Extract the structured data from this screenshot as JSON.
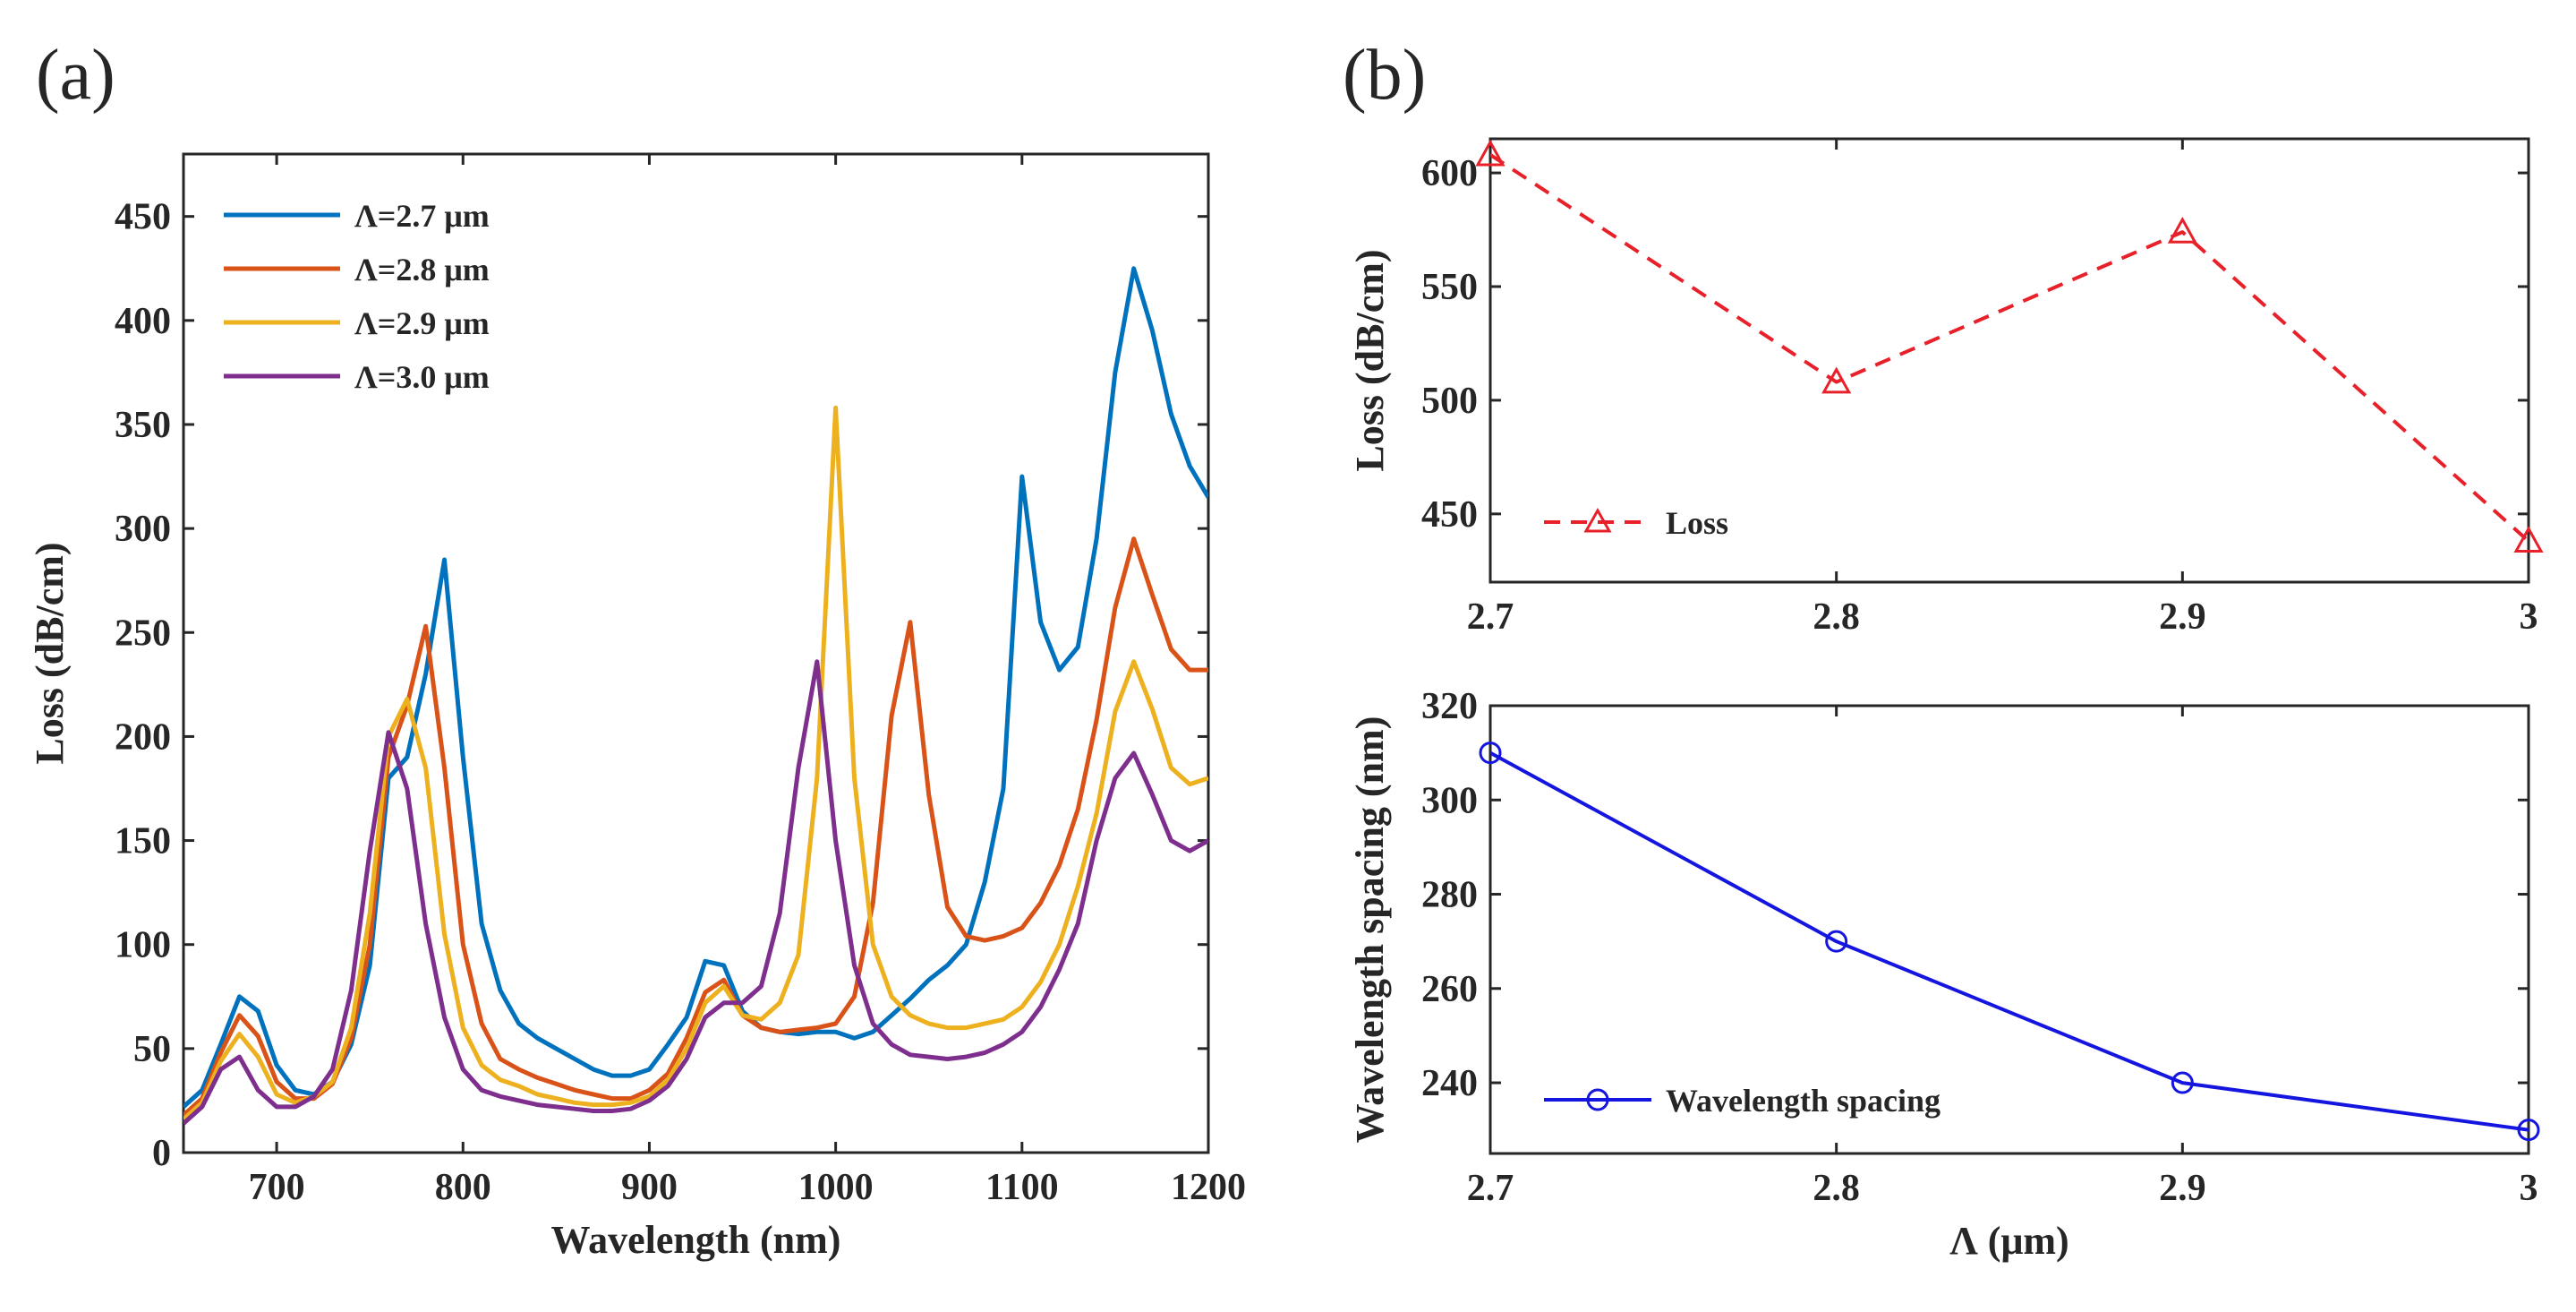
{
  "panel_labels": [
    "(a)",
    "(b)"
  ],
  "chart_data": [
    {
      "panel": "(a)",
      "type": "line",
      "xlabel": "Wavelength (nm)",
      "ylabel": "Loss (dB/cm)",
      "xlim": [
        650,
        1200
      ],
      "ylim": [
        0,
        480
      ],
      "xticks": [
        700,
        800,
        900,
        1000,
        1100,
        1200
      ],
      "yticks": [
        0,
        50,
        100,
        150,
        200,
        250,
        300,
        350,
        400,
        450
      ],
      "legend_position": "top-left",
      "x": [
        650,
        660,
        670,
        680,
        690,
        700,
        710,
        720,
        730,
        740,
        750,
        760,
        770,
        780,
        790,
        800,
        810,
        820,
        830,
        840,
        850,
        860,
        870,
        880,
        890,
        900,
        910,
        920,
        930,
        940,
        950,
        960,
        970,
        980,
        990,
        1000,
        1010,
        1020,
        1030,
        1040,
        1050,
        1060,
        1070,
        1080,
        1090,
        1100,
        1110,
        1120,
        1130,
        1140,
        1150,
        1160,
        1170,
        1180,
        1190,
        1200
      ],
      "series": [
        {
          "name": "Λ=2.7 μm",
          "color": "#0072BD",
          "values": [
            22,
            30,
            52,
            75,
            68,
            42,
            30,
            28,
            34,
            52,
            90,
            180,
            190,
            230,
            285,
            190,
            110,
            78,
            62,
            55,
            50,
            45,
            40,
            37,
            37,
            40,
            52,
            65,
            92,
            90,
            68,
            60,
            58,
            57,
            58,
            58,
            55,
            58,
            66,
            74,
            83,
            90,
            100,
            130,
            175,
            325,
            255,
            232,
            243,
            295,
            375,
            425,
            395,
            355,
            330,
            315
          ]
        },
        {
          "name": "Λ=2.8 μm",
          "color": "#D95319",
          "values": [
            18,
            26,
            48,
            66,
            56,
            34,
            26,
            26,
            33,
            55,
            100,
            190,
            215,
            253,
            185,
            100,
            62,
            45,
            40,
            36,
            33,
            30,
            28,
            26,
            26,
            30,
            38,
            55,
            77,
            83,
            66,
            60,
            58,
            59,
            60,
            62,
            75,
            120,
            210,
            255,
            172,
            118,
            104,
            102,
            104,
            108,
            120,
            138,
            165,
            208,
            262,
            295,
            268,
            242,
            232,
            232
          ]
        },
        {
          "name": "Λ=2.9 μm",
          "color": "#EDB120",
          "values": [
            16,
            24,
            44,
            57,
            46,
            28,
            24,
            27,
            34,
            60,
            115,
            200,
            218,
            185,
            105,
            60,
            42,
            35,
            32,
            28,
            26,
            24,
            23,
            23,
            24,
            27,
            35,
            50,
            72,
            80,
            66,
            64,
            72,
            95,
            180,
            358,
            180,
            100,
            75,
            66,
            62,
            60,
            60,
            62,
            64,
            70,
            82,
            100,
            128,
            163,
            212,
            236,
            213,
            185,
            177,
            180
          ]
        },
        {
          "name": "Λ=3.0 μm",
          "color": "#7E2F8E",
          "values": [
            14,
            22,
            40,
            46,
            30,
            22,
            22,
            27,
            40,
            78,
            145,
            202,
            175,
            110,
            65,
            40,
            30,
            27,
            25,
            23,
            22,
            21,
            20,
            20,
            21,
            25,
            32,
            45,
            65,
            72,
            72,
            80,
            115,
            185,
            236,
            150,
            90,
            62,
            52,
            47,
            46,
            45,
            46,
            48,
            52,
            58,
            70,
            88,
            110,
            150,
            180,
            192,
            172,
            150,
            145,
            150
          ]
        }
      ]
    },
    {
      "panel": "(b) top",
      "type": "line",
      "xlabel": "",
      "ylabel": "Loss (dB/cm)",
      "xlim": [
        2.7,
        3.0
      ],
      "ylim": [
        420,
        615
      ],
      "xticks": [
        "2.7",
        "2.8",
        "2.9",
        "3"
      ],
      "yticks": [
        450,
        500,
        550,
        600
      ],
      "legend_position": "bottom-left",
      "x": [
        2.7,
        2.8,
        2.9,
        3.0
      ],
      "series": [
        {
          "name": "Loss",
          "color": "#E8202A",
          "line": "dashed",
          "marker": "triangle",
          "values": [
            608,
            508,
            574,
            438
          ]
        }
      ]
    },
    {
      "panel": "(b) bottom",
      "type": "line",
      "xlabel": "Λ (μm)",
      "ylabel": "Wavelength spacing (nm)",
      "xlim": [
        2.7,
        3.0
      ],
      "ylim": [
        225,
        320
      ],
      "xticks": [
        "2.7",
        "2.8",
        "2.9",
        "3"
      ],
      "yticks": [
        240,
        260,
        280,
        300,
        320
      ],
      "legend_position": "bottom-left",
      "x": [
        2.7,
        2.8,
        2.9,
        3.0
      ],
      "series": [
        {
          "name": "Wavelength spacing",
          "color": "#1515E0",
          "line": "solid",
          "marker": "circle",
          "values": [
            310,
            270,
            240,
            230
          ]
        }
      ]
    }
  ]
}
